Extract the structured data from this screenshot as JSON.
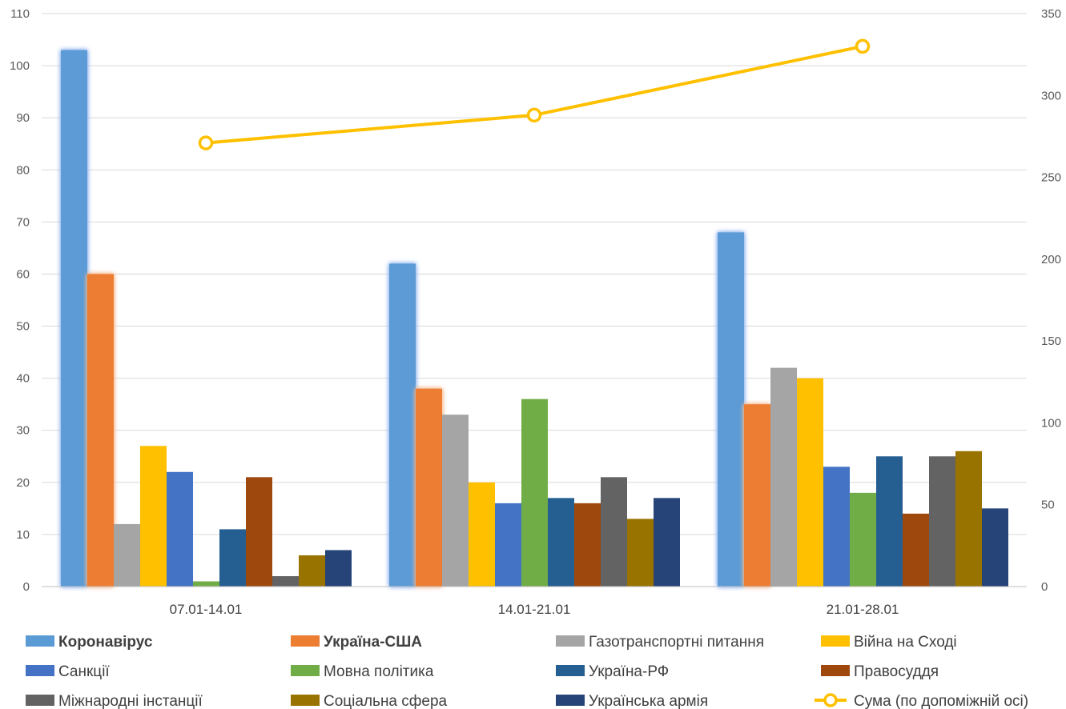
{
  "chart_data": {
    "type": "bar",
    "categories": [
      "07.01-14.01",
      "14.01-21.01",
      "21.01-28.01"
    ],
    "ylim": [
      0,
      110
    ],
    "y_ticks": [
      0,
      10,
      20,
      30,
      40,
      50,
      60,
      70,
      80,
      90,
      100,
      110
    ],
    "y2lim": [
      0,
      350
    ],
    "y2_ticks": [
      0,
      50,
      100,
      150,
      200,
      250,
      300,
      350
    ],
    "grid": true,
    "legend_position": "bottom",
    "series": [
      {
        "name": "Коронавірус",
        "values": [
          103,
          62,
          68
        ],
        "color": "#5B9BD5",
        "bold": true,
        "highlight": true
      },
      {
        "name": "Україна-США",
        "values": [
          60,
          38,
          35
        ],
        "color": "#ED7D31",
        "bold": true,
        "highlight": true
      },
      {
        "name": "Газотранспортні питання",
        "values": [
          12,
          33,
          42
        ],
        "color": "#A5A5A5"
      },
      {
        "name": "Війна на Сході",
        "values": [
          27,
          20,
          40
        ],
        "color": "#FFC000"
      },
      {
        "name": "Санкції",
        "values": [
          22,
          16,
          23
        ],
        "color": "#4472C4"
      },
      {
        "name": "Мовна політика",
        "values": [
          1,
          36,
          18
        ],
        "color": "#70AD47"
      },
      {
        "name": "Україна-РФ",
        "values": [
          11,
          17,
          25
        ],
        "color": "#255E91"
      },
      {
        "name": "Правосуддя",
        "values": [
          21,
          16,
          14
        ],
        "color": "#9E480E"
      },
      {
        "name": "Міжнародні інстанції",
        "values": [
          2,
          21,
          25
        ],
        "color": "#636363"
      },
      {
        "name": "Соціальна сфера",
        "values": [
          6,
          13,
          26
        ],
        "color": "#997300"
      },
      {
        "name": "Українська армія",
        "values": [
          7,
          17,
          15
        ],
        "color": "#264478"
      }
    ],
    "line_series": {
      "name": "Сума (по допоміжній осі)",
      "values": [
        271,
        288,
        330
      ],
      "color": "#FFC000",
      "axis": "secondary"
    }
  }
}
